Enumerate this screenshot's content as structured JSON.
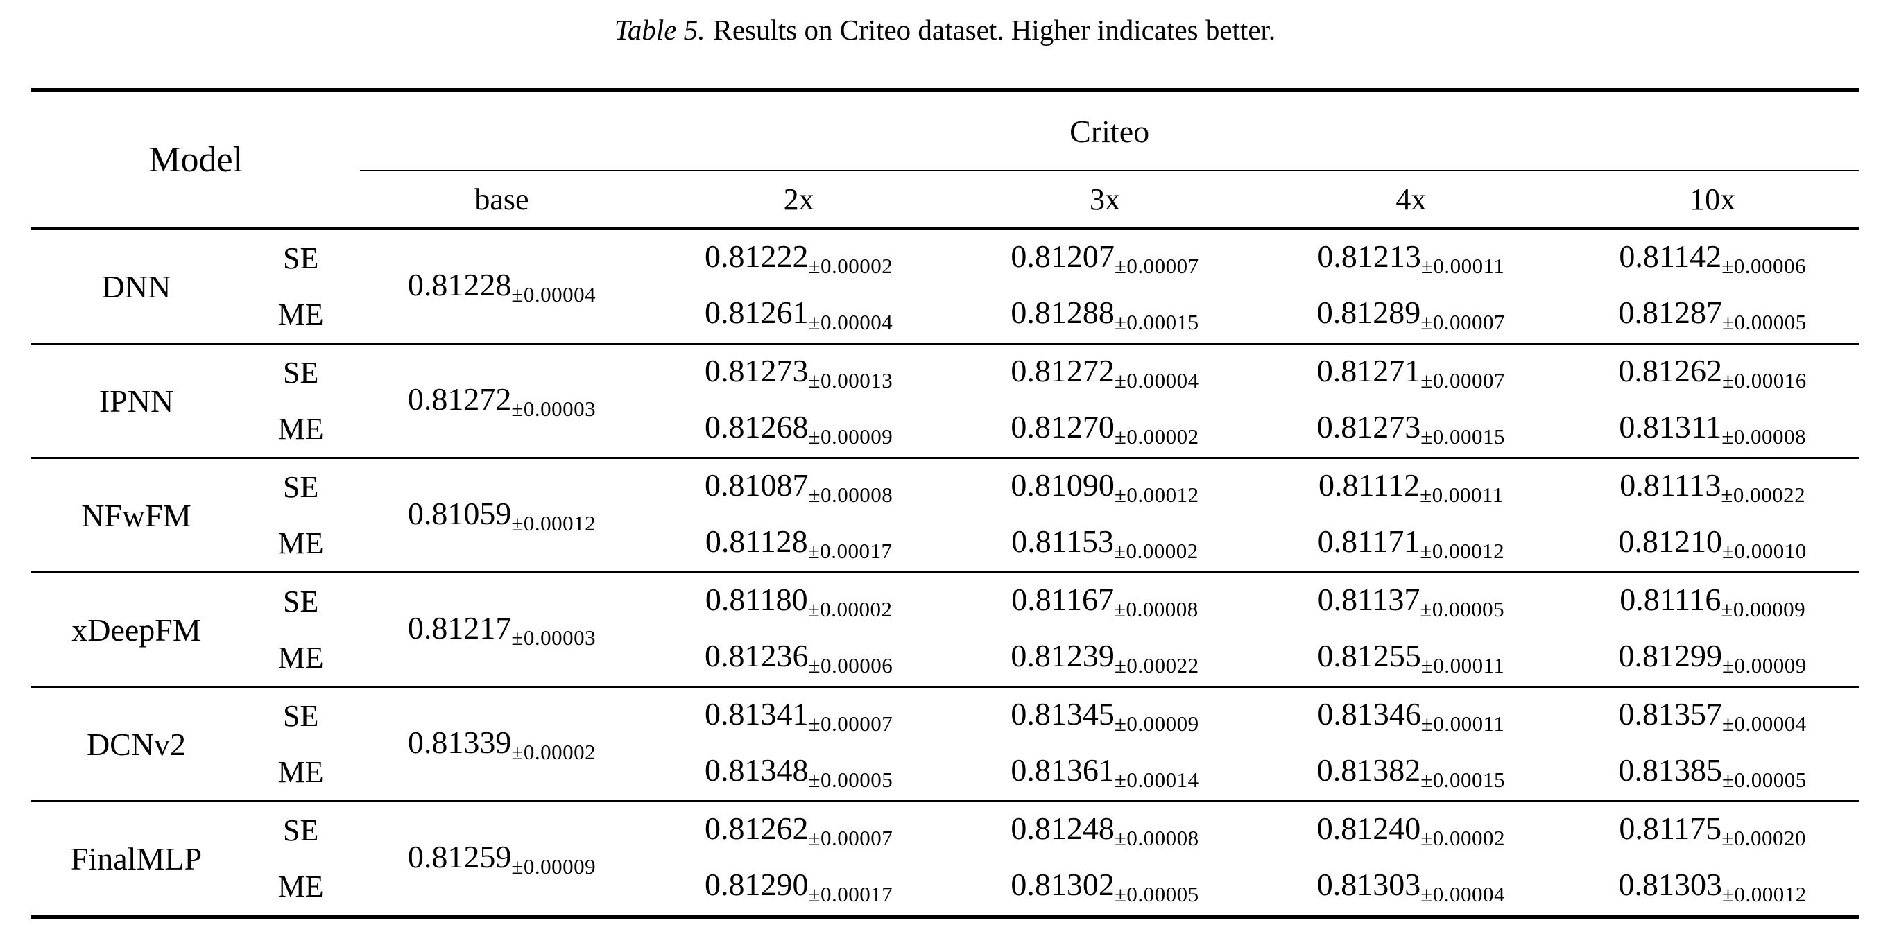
{
  "caption": {
    "label": "Table 5.",
    "text": "Results on Criteo dataset. Higher indicates better."
  },
  "table": {
    "model_header": "Model",
    "dataset_header": "Criteo",
    "columns": [
      "base",
      "2x",
      "3x",
      "4x",
      "10x"
    ],
    "row_tags": [
      "SE",
      "ME"
    ],
    "rows": [
      {
        "model": "DNN",
        "base": {
          "v": "0.81228",
          "pm": "±0.00004"
        },
        "se": [
          {
            "v": "0.81222",
            "pm": "±0.00002"
          },
          {
            "v": "0.81207",
            "pm": "±0.00007"
          },
          {
            "v": "0.81213",
            "pm": "±0.00011"
          },
          {
            "v": "0.81142",
            "pm": "±0.00006"
          }
        ],
        "me": [
          {
            "v": "0.81261",
            "pm": "±0.00004"
          },
          {
            "v": "0.81288",
            "pm": "±0.00015"
          },
          {
            "v": "0.81289",
            "pm": "±0.00007"
          },
          {
            "v": "0.81287",
            "pm": "±0.00005"
          }
        ]
      },
      {
        "model": "IPNN",
        "base": {
          "v": "0.81272",
          "pm": "±0.00003"
        },
        "se": [
          {
            "v": "0.81273",
            "pm": "±0.00013"
          },
          {
            "v": "0.81272",
            "pm": "±0.00004"
          },
          {
            "v": "0.81271",
            "pm": "±0.00007"
          },
          {
            "v": "0.81262",
            "pm": "±0.00016"
          }
        ],
        "me": [
          {
            "v": "0.81268",
            "pm": "±0.00009"
          },
          {
            "v": "0.81270",
            "pm": "±0.00002"
          },
          {
            "v": "0.81273",
            "pm": "±0.00015"
          },
          {
            "v": "0.81311",
            "pm": "±0.00008"
          }
        ]
      },
      {
        "model": "NFwFM",
        "base": {
          "v": "0.81059",
          "pm": "±0.00012"
        },
        "se": [
          {
            "v": "0.81087",
            "pm": "±0.00008"
          },
          {
            "v": "0.81090",
            "pm": "±0.00012"
          },
          {
            "v": "0.81112",
            "pm": "±0.00011"
          },
          {
            "v": "0.81113",
            "pm": "±0.00022"
          }
        ],
        "me": [
          {
            "v": "0.81128",
            "pm": "±0.00017"
          },
          {
            "v": "0.81153",
            "pm": "±0.00002"
          },
          {
            "v": "0.81171",
            "pm": "±0.00012"
          },
          {
            "v": "0.81210",
            "pm": "±0.00010"
          }
        ]
      },
      {
        "model": "xDeepFM",
        "base": {
          "v": "0.81217",
          "pm": "±0.00003"
        },
        "se": [
          {
            "v": "0.81180",
            "pm": "±0.00002"
          },
          {
            "v": "0.81167",
            "pm": "±0.00008"
          },
          {
            "v": "0.81137",
            "pm": "±0.00005"
          },
          {
            "v": "0.81116",
            "pm": "±0.00009"
          }
        ],
        "me": [
          {
            "v": "0.81236",
            "pm": "±0.00006"
          },
          {
            "v": "0.81239",
            "pm": "±0.00022"
          },
          {
            "v": "0.81255",
            "pm": "±0.00011"
          },
          {
            "v": "0.81299",
            "pm": "±0.00009"
          }
        ]
      },
      {
        "model": "DCNv2",
        "base": {
          "v": "0.81339",
          "pm": "±0.00002"
        },
        "se": [
          {
            "v": "0.81341",
            "pm": "±0.00007"
          },
          {
            "v": "0.81345",
            "pm": "±0.00009"
          },
          {
            "v": "0.81346",
            "pm": "±0.00011"
          },
          {
            "v": "0.81357",
            "pm": "±0.00004"
          }
        ],
        "me": [
          {
            "v": "0.81348",
            "pm": "±0.00005"
          },
          {
            "v": "0.81361",
            "pm": "±0.00014"
          },
          {
            "v": "0.81382",
            "pm": "±0.00015"
          },
          {
            "v": "0.81385",
            "pm": "±0.00005"
          }
        ]
      },
      {
        "model": "FinalMLP",
        "base": {
          "v": "0.81259",
          "pm": "±0.00009"
        },
        "se": [
          {
            "v": "0.81262",
            "pm": "±0.00007"
          },
          {
            "v": "0.81248",
            "pm": "±0.00008"
          },
          {
            "v": "0.81240",
            "pm": "±0.00002"
          },
          {
            "v": "0.81175",
            "pm": "±0.00020"
          }
        ],
        "me": [
          {
            "v": "0.81290",
            "pm": "±0.00017"
          },
          {
            "v": "0.81302",
            "pm": "±0.00005"
          },
          {
            "v": "0.81303",
            "pm": "±0.00004"
          },
          {
            "v": "0.81303",
            "pm": "±0.00012"
          }
        ]
      }
    ]
  }
}
